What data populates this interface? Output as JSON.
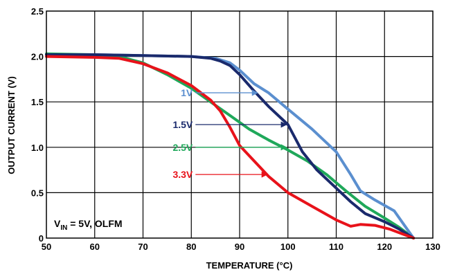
{
  "chart_data": {
    "type": "line",
    "xlabel": "TEMPERATURE (°C)",
    "ylabel": "OUTPUT CURRENT (V)",
    "xlim": [
      50,
      130
    ],
    "ylim": [
      0,
      2.5
    ],
    "x_ticks": [
      "50",
      "60",
      "70",
      "80",
      "90",
      "100",
      "110",
      "120",
      "130"
    ],
    "y_ticks": [
      "0",
      "0.5",
      "1.0",
      "1.5",
      "2.0",
      "2.5"
    ],
    "grid": true,
    "annotation": {
      "main": "V",
      "sub": "IN",
      "rest": " = 5V, OLFM"
    },
    "series": [
      {
        "name": "1V",
        "color": "#5b8fcf",
        "label_at": [
          94,
          1.6
        ],
        "points": [
          [
            50,
            2.02
          ],
          [
            60,
            2.02
          ],
          [
            70,
            2.01
          ],
          [
            80,
            2.0
          ],
          [
            85,
            1.98
          ],
          [
            88,
            1.93
          ],
          [
            90,
            1.85
          ],
          [
            93,
            1.7
          ],
          [
            96,
            1.6
          ],
          [
            100,
            1.42
          ],
          [
            105,
            1.2
          ],
          [
            110,
            0.95
          ],
          [
            113,
            0.7
          ],
          [
            115,
            0.52
          ],
          [
            118,
            0.42
          ],
          [
            122,
            0.3
          ],
          [
            124,
            0.15
          ],
          [
            126,
            0.0
          ]
        ]
      },
      {
        "name": "1.5V",
        "color": "#1a2a6c",
        "label_at": [
          100,
          1.25
        ],
        "points": [
          [
            50,
            2.02
          ],
          [
            60,
            2.02
          ],
          [
            70,
            2.01
          ],
          [
            80,
            2.0
          ],
          [
            84,
            1.98
          ],
          [
            86,
            1.95
          ],
          [
            88,
            1.9
          ],
          [
            90,
            1.8
          ],
          [
            93,
            1.62
          ],
          [
            96,
            1.45
          ],
          [
            100,
            1.25
          ],
          [
            103,
            0.95
          ],
          [
            106,
            0.75
          ],
          [
            110,
            0.55
          ],
          [
            113,
            0.4
          ],
          [
            116,
            0.27
          ],
          [
            120,
            0.18
          ],
          [
            123,
            0.1
          ],
          [
            126,
            0.0
          ]
        ]
      },
      {
        "name": "2.5V",
        "color": "#1fa85a",
        "label_at": [
          100,
          1.0
        ],
        "points": [
          [
            50,
            2.03
          ],
          [
            60,
            2.02
          ],
          [
            65,
            2.0
          ],
          [
            70,
            1.93
          ],
          [
            75,
            1.8
          ],
          [
            80,
            1.65
          ],
          [
            84,
            1.5
          ],
          [
            88,
            1.35
          ],
          [
            92,
            1.2
          ],
          [
            96,
            1.08
          ],
          [
            100,
            0.97
          ],
          [
            104,
            0.85
          ],
          [
            108,
            0.7
          ],
          [
            112,
            0.52
          ],
          [
            116,
            0.35
          ],
          [
            120,
            0.22
          ],
          [
            123,
            0.12
          ],
          [
            126,
            0.0
          ]
        ]
      },
      {
        "name": "3.3V",
        "color": "#e8121a",
        "label_at": [
          96,
          0.7
        ],
        "points": [
          [
            50,
            2.0
          ],
          [
            60,
            1.99
          ],
          [
            65,
            1.98
          ],
          [
            70,
            1.92
          ],
          [
            75,
            1.82
          ],
          [
            80,
            1.68
          ],
          [
            84,
            1.52
          ],
          [
            86,
            1.4
          ],
          [
            88,
            1.22
          ],
          [
            90,
            1.02
          ],
          [
            93,
            0.85
          ],
          [
            96,
            0.68
          ],
          [
            100,
            0.5
          ],
          [
            105,
            0.35
          ],
          [
            110,
            0.2
          ],
          [
            113,
            0.13
          ],
          [
            115,
            0.15
          ],
          [
            118,
            0.14
          ],
          [
            121,
            0.1
          ],
          [
            124,
            0.04
          ],
          [
            126,
            0.0
          ]
        ]
      }
    ]
  }
}
